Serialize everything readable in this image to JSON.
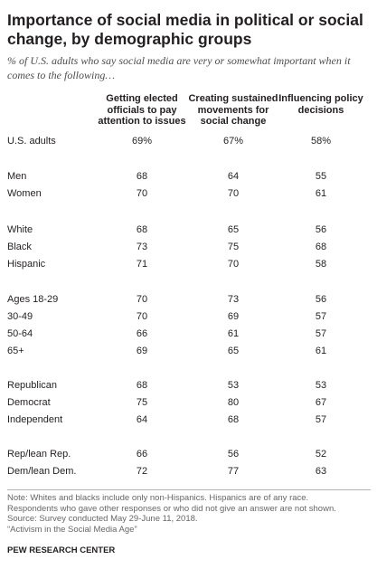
{
  "title": "Importance of social media in political or social change, by demographic groups",
  "subtitle": "% of U.S. adults who say social media are very or somewhat important when it comes to the following…",
  "chart_data": {
    "type": "table",
    "columns": [
      "Getting elected officials to pay attention to issues",
      "Creating sustained movements for social change",
      "Influencing policy decisions"
    ],
    "rows": [
      {
        "label": "U.S. adults",
        "values": [
          "69%",
          "67%",
          "58%"
        ]
      },
      {
        "label": "Men",
        "values": [
          "68",
          "64",
          "55"
        ]
      },
      {
        "label": "Women",
        "values": [
          "70",
          "70",
          "61"
        ]
      },
      {
        "label": "White",
        "values": [
          "68",
          "65",
          "56"
        ]
      },
      {
        "label": "Black",
        "values": [
          "73",
          "75",
          "68"
        ]
      },
      {
        "label": "Hispanic",
        "values": [
          "71",
          "70",
          "58"
        ]
      },
      {
        "label": "Ages 18-29",
        "values": [
          "70",
          "73",
          "56"
        ]
      },
      {
        "label": "30-49",
        "values": [
          "70",
          "69",
          "57"
        ]
      },
      {
        "label": "50-64",
        "values": [
          "66",
          "61",
          "57"
        ]
      },
      {
        "label": "65+",
        "values": [
          "69",
          "65",
          "61"
        ]
      },
      {
        "label": "Republican",
        "values": [
          "68",
          "53",
          "53"
        ]
      },
      {
        "label": "Democrat",
        "values": [
          "75",
          "80",
          "67"
        ]
      },
      {
        "label": "Independent",
        "values": [
          "64",
          "68",
          "57"
        ]
      },
      {
        "label": "Rep/lean Rep.",
        "values": [
          "66",
          "56",
          "52"
        ]
      },
      {
        "label": "Dem/lean Dem.",
        "values": [
          "72",
          "77",
          "63"
        ]
      }
    ]
  },
  "notes": [
    "Note: Whites and blacks include only non-Hispanics. Hispanics are of any race.",
    "Respondents who gave other responses or who did not give an answer are not shown.",
    "Source: Survey conducted May 29-June 11, 2018.",
    "“Activism in the Social Media Age”"
  ],
  "source_org": "PEW RESEARCH CENTER"
}
